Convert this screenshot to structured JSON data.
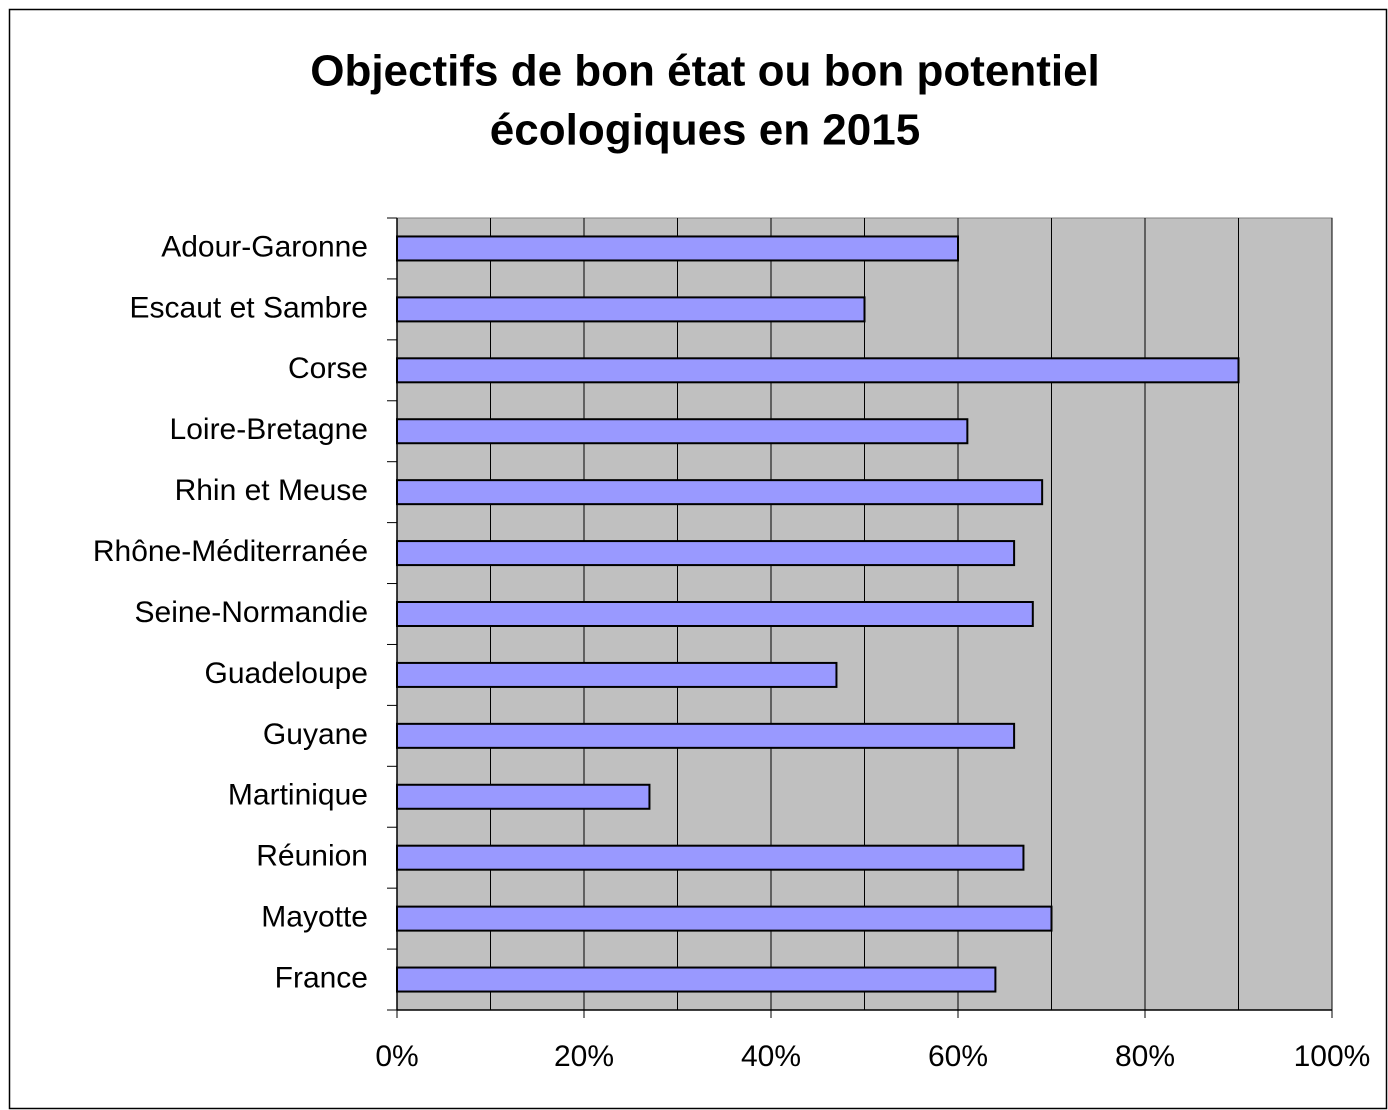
{
  "chart_data": {
    "type": "barh",
    "title": [
      "Objectifs de bon état ou bon potentiel",
      "écologiques en 2015"
    ],
    "categories": [
      "Adour-Garonne",
      "Escaut et Sambre",
      "Corse",
      "Loire-Bretagne",
      "Rhin et Meuse",
      "Rhône-Méditerranée",
      "Seine-Normandie",
      "Guadeloupe",
      "Guyane",
      "Martinique",
      "Réunion",
      "Mayotte",
      "France"
    ],
    "values": [
      60,
      50,
      90,
      61,
      69,
      66,
      68,
      47,
      66,
      27,
      67,
      70,
      64
    ],
    "color": "#9999ff",
    "xlim": [
      0,
      100
    ],
    "xticks": [
      {
        "value": 0,
        "label": "0%"
      },
      {
        "value": 20,
        "label": "20%"
      },
      {
        "value": 40,
        "label": "40%"
      },
      {
        "value": 60,
        "label": "60%"
      },
      {
        "value": 80,
        "label": "80%"
      },
      {
        "value": 100,
        "label": "100%"
      }
    ],
    "xminorticks": [
      10,
      30,
      50,
      70,
      90
    ],
    "grid": true,
    "plot_background": "#c0c0c0"
  }
}
